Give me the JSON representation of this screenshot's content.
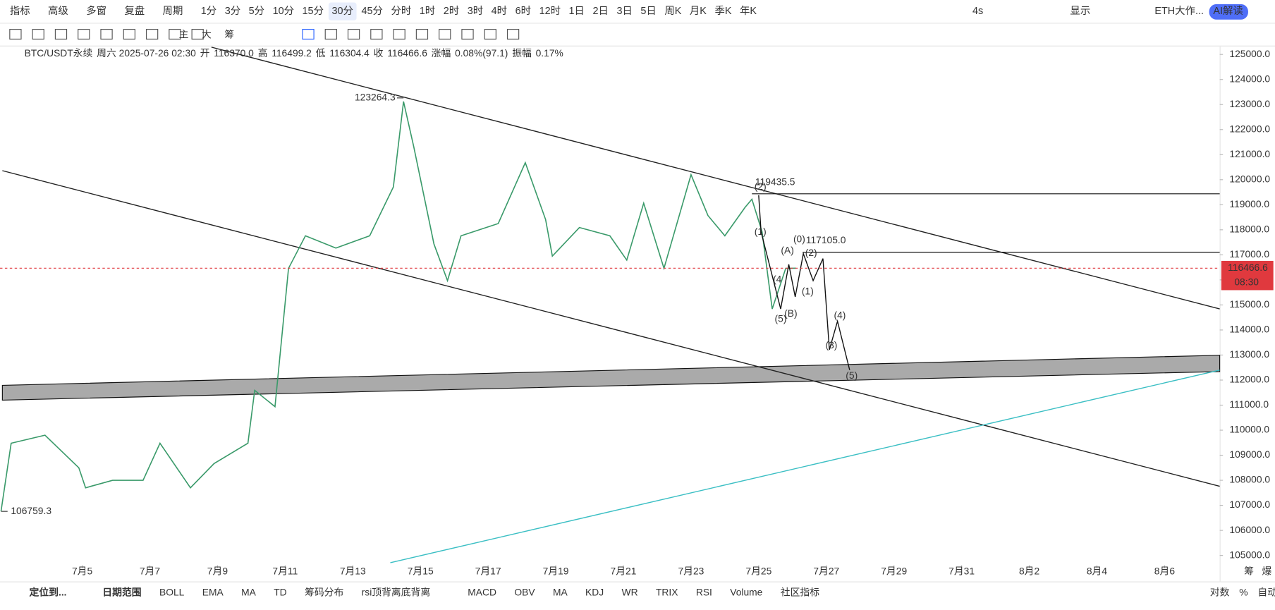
{
  "toolbar": {
    "items": [
      "指标",
      "高级",
      "多窗",
      "复盘",
      "周期",
      "1分",
      "3分",
      "5分",
      "10分",
      "15分",
      "30分",
      "45分",
      "分时",
      "1时",
      "2时",
      "3时",
      "4时",
      "6时",
      "12时",
      "1日",
      "2日",
      "3日",
      "5日",
      "周K",
      "月K",
      "季K",
      "年K"
    ],
    "selected": 10,
    "right": [
      "4s",
      "显示",
      "ETH大作...",
      "AI解读"
    ]
  },
  "draw_toolbar": {
    "labels": [
      "主",
      "大",
      "筹"
    ]
  },
  "info": {
    "symbol": "BTC/USDT永续",
    "time": "周六 2025-07-26 02:30",
    "fields": [
      {
        "k": "开",
        "v": "116370.0"
      },
      {
        "k": "高",
        "v": "116499.2"
      },
      {
        "k": "低",
        "v": "116304.4"
      },
      {
        "k": "收",
        "v": "116466.6"
      },
      {
        "k": "涨幅",
        "v": "0.08%(97.1)"
      },
      {
        "k": "振幅",
        "v": "0.17%"
      }
    ]
  },
  "chart_data": {
    "type": "line",
    "x": [
      2.6,
      2.9,
      3.9,
      4.9,
      5.1,
      5.9,
      6.8,
      7.3,
      8.2,
      8.9,
      9.9,
      10.1,
      10.7,
      11.1,
      11.6,
      12.5,
      13.5,
      14.2,
      14.5,
      14.8,
      15.4,
      15.8,
      16.2,
      17.3,
      18.1,
      18.7,
      18.9,
      19.7,
      20.6,
      21.1,
      21.6,
      22.2,
      23.0,
      23.5,
      24.0,
      24.6,
      24.8,
      25.1,
      25.4,
      25.8,
      26.1
    ],
    "series": [
      {
        "name": "BTC/USDT永续",
        "color": "#3a9a6a",
        "values": [
          106760,
          109480,
          109800,
          108500,
          107700,
          108000,
          108000,
          109480,
          107700,
          108670,
          109480,
          111590,
          110940,
          116460,
          117760,
          117270,
          117760,
          119710,
          123120,
          121330,
          117430,
          115970,
          117760,
          118250,
          120680,
          118410,
          116950,
          118090,
          117760,
          116790,
          119060,
          116460,
          120200,
          118570,
          117760,
          118900,
          119220,
          117920,
          114840,
          116460,
          116466.6
        ]
      }
    ],
    "xlim": [
      2.57,
      38.63
    ],
    "ylim": [
      104610,
      125320
    ],
    "xticks": [
      {
        "value": 5,
        "label": "7月5"
      },
      {
        "value": 7,
        "label": "7月7"
      },
      {
        "value": 9,
        "label": "7月9"
      },
      {
        "value": 11,
        "label": "7月11"
      },
      {
        "value": 13,
        "label": "7月13"
      },
      {
        "value": 15,
        "label": "7月15"
      },
      {
        "value": 17,
        "label": "7月17"
      },
      {
        "value": 19,
        "label": "7月19"
      },
      {
        "value": 21,
        "label": "7月21"
      },
      {
        "value": 23,
        "label": "7月23"
      },
      {
        "value": 25,
        "label": "7月25"
      },
      {
        "value": 27,
        "label": "7月27"
      },
      {
        "value": 29,
        "label": "7月29"
      },
      {
        "value": 31,
        "label": "7月31"
      },
      {
        "value": 33,
        "label": "8月2"
      },
      {
        "value": 35,
        "label": "8月4"
      },
      {
        "value": 37,
        "label": "8月6"
      }
    ],
    "yticks": [
      {
        "value": 125000,
        "label": "125000.0"
      },
      {
        "value": 124000,
        "label": "124000.0"
      },
      {
        "value": 123000,
        "label": "123000.0"
      },
      {
        "value": 122000,
        "label": "122000.0"
      },
      {
        "value": 121000,
        "label": "121000.0"
      },
      {
        "value": 120000,
        "label": "120000.0"
      },
      {
        "value": 119000,
        "label": "119000.0"
      },
      {
        "value": 118000,
        "label": "118000.0"
      },
      {
        "value": 117000,
        "label": "117000.0"
      },
      {
        "value": 116000,
        "label": "116000.0"
      },
      {
        "value": 115000,
        "label": "115000.0"
      },
      {
        "value": 114000,
        "label": "114000.0"
      },
      {
        "value": 113000,
        "label": "113000.0"
      },
      {
        "value": 112000,
        "label": "112000.0"
      },
      {
        "value": 111000,
        "label": "111000.0"
      },
      {
        "value": 110000,
        "label": "110000.0"
      },
      {
        "value": 109000,
        "label": "109000.0"
      },
      {
        "value": 108000,
        "label": "108000.0"
      },
      {
        "value": 107000,
        "label": "107000.0"
      },
      {
        "value": 106000,
        "label": "106000.0"
      },
      {
        "value": 105000,
        "label": "105000.0"
      }
    ],
    "trendlines": [
      {
        "color": "#222",
        "x": [
          8.82,
          38.63
        ],
        "y": [
          125290,
          114840
        ]
      },
      {
        "color": "#222",
        "x": [
          2.64,
          38.63
        ],
        "y": [
          120360,
          107760
        ]
      },
      {
        "color": "#3bbfc4",
        "x": [
          14.11,
          38.63
        ],
        "y": [
          104710,
          112400
        ]
      }
    ],
    "band": {
      "color": "#aaaaaa",
      "x": [
        2.64,
        38.63
      ],
      "top": [
        111790,
        112990
      ],
      "bottom": [
        111200,
        112340
      ]
    },
    "levels": [
      {
        "value": 119435.5,
        "label": "119435.5",
        "from": 24.8
      },
      {
        "value": 117105.0,
        "label": "117105.0",
        "from": 26.3
      }
    ],
    "extremes": [
      {
        "x": 14.5,
        "value": 123264.3,
        "label": "123264.3"
      },
      {
        "x": 2.65,
        "value": 106759.3,
        "label": "106759.3"
      }
    ],
    "last": {
      "value": 116466.6,
      "label": "116466.6",
      "countdown": "08:30"
    },
    "wave_path": {
      "color": "#111",
      "x": [
        25.0,
        25.07,
        25.65,
        25.89,
        26.08,
        26.32,
        26.61,
        26.9,
        27.09,
        27.33,
        27.69
      ],
      "y": [
        119380,
        117920,
        114840,
        116620,
        115320,
        117050,
        115970,
        116850,
        113210,
        114350,
        112400
      ]
    },
    "wave_labels": [
      {
        "text": "(1)",
        "x": 25.05,
        "y": 117900
      },
      {
        "text": "(2)",
        "x": 25.05,
        "y": 119700
      },
      {
        "text": "(4",
        "x": 25.55,
        "y": 116000
      },
      {
        "text": "(5)",
        "x": 25.65,
        "y": 114420
      },
      {
        "text": "(A)",
        "x": 25.85,
        "y": 117150
      },
      {
        "text": "(B)",
        "x": 25.95,
        "y": 114640
      },
      {
        "text": "(0)",
        "x": 26.2,
        "y": 117600
      },
      {
        "text": "(2)",
        "x": 26.55,
        "y": 117050
      },
      {
        "text": "(1)",
        "x": 26.45,
        "y": 115520
      },
      {
        "text": "(4)",
        "x": 27.4,
        "y": 114560
      },
      {
        "text": "(3)",
        "x": 27.15,
        "y": 113370
      },
      {
        "text": "(5)",
        "x": 27.75,
        "y": 112160
      }
    ]
  },
  "bottom_bar": {
    "left": [
      "定位到...",
      "日期范围"
    ],
    "indicators": [
      "BOLL",
      "EMA",
      "MA",
      "TD",
      "筹码分布",
      "rsi顶背离底背离",
      "MACD",
      "OBV",
      "MA",
      "KDJ",
      "WR",
      "TRIX",
      "RSI",
      "Volume",
      "社区指标"
    ],
    "right": [
      "对数",
      "%",
      "自动"
    ],
    "axis_corner": [
      "筹",
      "爆"
    ]
  }
}
